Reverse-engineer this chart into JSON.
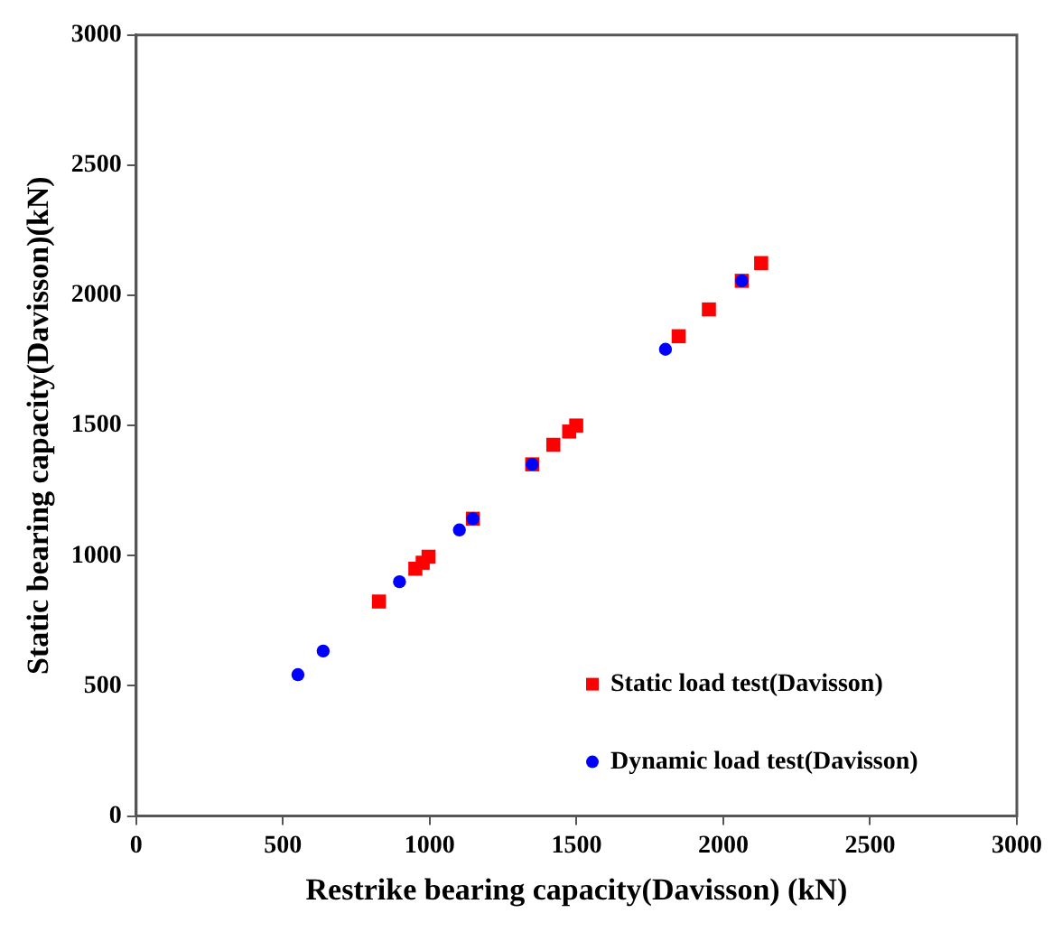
{
  "chart_data": {
    "type": "scatter",
    "xlabel": "Restrike bearing capacity(Davisson) (kN)",
    "ylabel": "Static bearing capacity(Davisson)(kN)",
    "xlim": [
      0,
      3000
    ],
    "xticks": [
      0,
      500,
      1000,
      1500,
      2000,
      2500,
      3000
    ],
    "ylim": [
      0,
      3000
    ],
    "yticks": [
      0,
      500,
      1000,
      1500,
      2000,
      2500,
      3000
    ],
    "grid": false,
    "legend": "bottom right",
    "series": [
      {
        "name": "Static load test(Davisson)",
        "color": "#ff0000",
        "marker": "square",
        "x": [
          827,
          951,
          976,
          996,
          1147,
          1349,
          1421,
          1475,
          1499,
          1848,
          1951,
          2063,
          2129
        ],
        "values": [
          824,
          950,
          973,
          996,
          1142,
          1351,
          1426,
          1477,
          1500,
          1843,
          1946,
          2056,
          2124
        ]
      },
      {
        "name": "Dynamic load test(Davisson)",
        "color": "#0000ff",
        "marker": "circle",
        "x": [
          551,
          637,
          897,
          1101,
          1147,
          1349,
          1803,
          2063
        ],
        "values": [
          543,
          634,
          900,
          1099,
          1142,
          1351,
          1793,
          2056
        ]
      }
    ]
  }
}
